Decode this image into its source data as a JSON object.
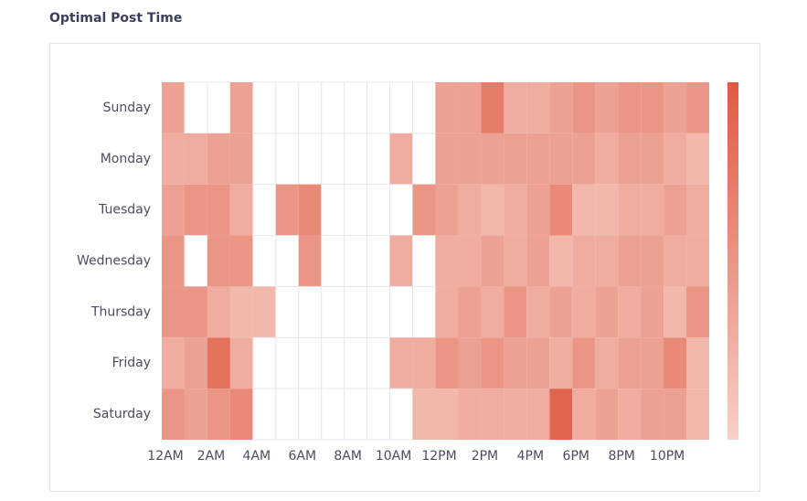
{
  "chart_data": {
    "type": "heatmap",
    "title": "Optimal Post Time",
    "categories": [
      "12AM",
      null,
      "2AM",
      null,
      "4AM",
      null,
      "6AM",
      null,
      "8AM",
      null,
      "10AM",
      null,
      "12PM",
      null,
      "2PM",
      null,
      "4PM",
      null,
      "6PM",
      null,
      "8PM",
      null,
      "10PM",
      null
    ],
    "rows": [
      "Sunday",
      "Monday",
      "Tuesday",
      "Wednesday",
      "Thursday",
      "Friday",
      "Saturday"
    ],
    "values": [
      [
        4,
        null,
        null,
        4,
        null,
        null,
        null,
        null,
        null,
        null,
        null,
        null,
        4,
        4,
        7,
        3,
        3,
        4,
        5,
        4,
        5,
        5,
        4,
        5
      ],
      [
        3,
        3,
        4,
        4,
        null,
        null,
        null,
        null,
        null,
        null,
        3,
        null,
        4,
        4,
        4,
        4,
        4,
        4,
        4,
        3,
        4,
        4,
        3,
        2
      ],
      [
        4,
        5,
        5,
        3,
        null,
        5,
        6,
        null,
        null,
        null,
        null,
        5,
        4,
        3,
        2,
        3,
        4,
        6,
        2,
        2,
        3,
        3,
        4,
        3
      ],
      [
        5,
        null,
        5,
        5,
        null,
        null,
        5,
        null,
        null,
        null,
        3,
        null,
        3,
        3,
        4,
        3,
        4,
        2,
        3,
        3,
        4,
        4,
        3,
        3
      ],
      [
        5,
        5,
        3,
        2,
        2,
        null,
        null,
        null,
        null,
        null,
        null,
        null,
        3,
        4,
        3,
        5,
        3,
        4,
        3,
        4,
        3,
        4,
        2,
        5
      ],
      [
        3,
        4,
        8,
        3,
        null,
        null,
        null,
        null,
        null,
        null,
        3,
        3,
        5,
        4,
        5,
        4,
        4,
        3,
        5,
        3,
        4,
        4,
        6,
        2
      ],
      [
        5,
        4,
        5,
        6,
        null,
        null,
        null,
        null,
        null,
        null,
        null,
        2,
        2,
        3,
        3,
        3,
        3,
        9,
        3,
        4,
        3,
        4,
        4,
        2
      ]
    ],
    "clim": [
      0,
      10
    ],
    "colors": [
      "#f7d0c7",
      "#df5a42"
    ]
  }
}
